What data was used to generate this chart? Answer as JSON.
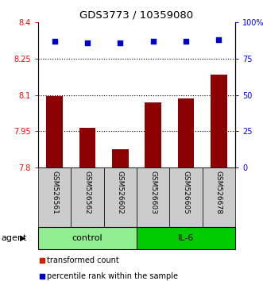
{
  "title": "GDS3773 / 10359080",
  "samples": [
    "GSM526561",
    "GSM526562",
    "GSM526602",
    "GSM526603",
    "GSM526605",
    "GSM526678"
  ],
  "bar_values": [
    8.095,
    7.965,
    7.875,
    8.07,
    8.085,
    8.185
  ],
  "percentile_values": [
    87,
    86,
    86,
    87,
    87,
    88
  ],
  "ylim_left": [
    7.8,
    8.4
  ],
  "ylim_right": [
    0,
    100
  ],
  "yticks_left": [
    7.8,
    7.95,
    8.1,
    8.25,
    8.4
  ],
  "yticks_right": [
    0,
    25,
    50,
    75,
    100
  ],
  "ytick_labels_left": [
    "7.8",
    "7.95",
    "8.1",
    "8.25",
    "8.4"
  ],
  "ytick_labels_right": [
    "0",
    "25",
    "50",
    "75",
    "100%"
  ],
  "hlines": [
    7.95,
    8.1,
    8.25
  ],
  "bar_color": "#8B0000",
  "dot_color": "#0000CD",
  "groups": [
    {
      "label": "control",
      "indices": [
        0,
        1,
        2
      ],
      "color": "#90EE90"
    },
    {
      "label": "IL-6",
      "indices": [
        3,
        4,
        5
      ],
      "color": "#00CC00"
    }
  ],
  "agent_label": "agent",
  "legend_items": [
    {
      "color": "#CC2200",
      "label": "transformed count"
    },
    {
      "color": "#0000CC",
      "label": "percentile rank within the sample"
    }
  ],
  "sample_box_color": "#CCCCCC",
  "bar_base": 7.8,
  "fig_w": 3.31,
  "fig_h": 3.54
}
